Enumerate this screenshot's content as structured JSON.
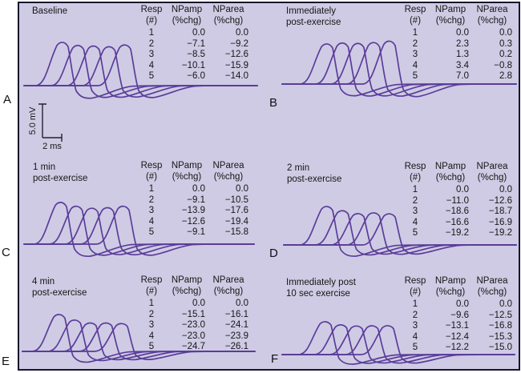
{
  "figure": {
    "background_color": "#cfcbe4",
    "trace_color": "#5a3d9a",
    "border_color": "#16162e"
  },
  "scale_bar": {
    "amplitude_label": "5.0 mV",
    "time_label": "2 ms"
  },
  "panel_letters": [
    "A",
    "B",
    "C",
    "D",
    "E",
    "F"
  ],
  "table_headers": [
    "Resp\n(#)",
    "NPamp\n(%chg)",
    "NParea\n(%chg)"
  ],
  "panels": [
    {
      "letter": "A",
      "title": "Baseline",
      "rows": [
        [
          "1",
          "0.0",
          "0.0"
        ],
        [
          "2",
          "−7.1",
          "−9.2"
        ],
        [
          "3",
          "−8.5",
          "−12.6"
        ],
        [
          "4",
          "−10.1",
          "−15.9"
        ],
        [
          "5",
          "−6.0",
          "−14.0"
        ]
      ]
    },
    {
      "letter": "B",
      "title": "Immediately\npost-exercise",
      "rows": [
        [
          "1",
          "0.0",
          "0.0"
        ],
        [
          "2",
          "2.3",
          "0.3"
        ],
        [
          "3",
          "1.3",
          "0.2"
        ],
        [
          "4",
          "3.4",
          "−0.8"
        ],
        [
          "5",
          "7.0",
          "2.8"
        ]
      ]
    },
    {
      "letter": "C",
      "title": "1 min\npost-exercise",
      "rows": [
        [
          "1",
          "0.0",
          "0.0"
        ],
        [
          "2",
          "−9.1",
          "−10.5"
        ],
        [
          "3",
          "−13.9",
          "−17.6"
        ],
        [
          "4",
          "−12.6",
          "−19.4"
        ],
        [
          "5",
          "−9.1",
          "−15.8"
        ]
      ]
    },
    {
      "letter": "D",
      "title": "2 min\npost-exercise",
      "rows": [
        [
          "1",
          "0.0",
          "0.0"
        ],
        [
          "2",
          "−11.0",
          "−12.6"
        ],
        [
          "3",
          "−18.6",
          "−18.7"
        ],
        [
          "4",
          "−16.6",
          "−16.9"
        ],
        [
          "5",
          "−19.2",
          "−19.2"
        ]
      ]
    },
    {
      "letter": "E",
      "title": "4 min\npost-exercise",
      "rows": [
        [
          "1",
          "0.0",
          "0.0"
        ],
        [
          "2",
          "−15.1",
          "−16.1"
        ],
        [
          "3",
          "−23.0",
          "−24.1"
        ],
        [
          "4",
          "−23.0",
          "−23.9"
        ],
        [
          "5",
          "−24.7",
          "−26.1"
        ]
      ]
    },
    {
      "letter": "F",
      "title": "Immediately post\n10 sec exercise",
      "rows": [
        [
          "1",
          "0.0",
          "0.0"
        ],
        [
          "2",
          "−9.6",
          "−12.5"
        ],
        [
          "3",
          "−13.1",
          "−16.8"
        ],
        [
          "4",
          "−12.4",
          "−15.3"
        ],
        [
          "5",
          "−12.2",
          "−15.0"
        ]
      ]
    }
  ],
  "chart_data": [
    {
      "panel": "A",
      "condition": "Baseline",
      "type": "line",
      "description": "Five overlaid CMAP waveform responses to repetitive stimulation",
      "columns": [
        "Resp (#)",
        "NPamp (%chg)",
        "NParea (%chg)"
      ],
      "rows": [
        [
          1,
          0.0,
          0.0
        ],
        [
          2,
          -7.1,
          -9.2
        ],
        [
          3,
          -8.5,
          -12.6
        ],
        [
          4,
          -10.1,
          -15.9
        ],
        [
          5,
          -6.0,
          -14.0
        ]
      ],
      "scale": {
        "vertical": "5.0 mV",
        "horizontal": "2 ms"
      }
    },
    {
      "panel": "B",
      "condition": "Immediately post-exercise",
      "type": "line",
      "columns": [
        "Resp (#)",
        "NPamp (%chg)",
        "NParea (%chg)"
      ],
      "rows": [
        [
          1,
          0.0,
          0.0
        ],
        [
          2,
          2.3,
          0.3
        ],
        [
          3,
          1.3,
          0.2
        ],
        [
          4,
          3.4,
          -0.8
        ],
        [
          5,
          7.0,
          2.8
        ]
      ]
    },
    {
      "panel": "C",
      "condition": "1 min post-exercise",
      "type": "line",
      "columns": [
        "Resp (#)",
        "NPamp (%chg)",
        "NParea (%chg)"
      ],
      "rows": [
        [
          1,
          0.0,
          0.0
        ],
        [
          2,
          -9.1,
          -10.5
        ],
        [
          3,
          -13.9,
          -17.6
        ],
        [
          4,
          -12.6,
          -19.4
        ],
        [
          5,
          -9.1,
          -15.8
        ]
      ]
    },
    {
      "panel": "D",
      "condition": "2 min post-exercise",
      "type": "line",
      "columns": [
        "Resp (#)",
        "NPamp (%chg)",
        "NParea (%chg)"
      ],
      "rows": [
        [
          1,
          0.0,
          0.0
        ],
        [
          2,
          -11.0,
          -12.6
        ],
        [
          3,
          -18.6,
          -18.7
        ],
        [
          4,
          -16.6,
          -16.9
        ],
        [
          5,
          -19.2,
          -19.2
        ]
      ]
    },
    {
      "panel": "E",
      "condition": "4 min post-exercise",
      "type": "line",
      "columns": [
        "Resp (#)",
        "NPamp (%chg)",
        "NParea (%chg)"
      ],
      "rows": [
        [
          1,
          0.0,
          0.0
        ],
        [
          2,
          -15.1,
          -16.1
        ],
        [
          3,
          -23.0,
          -24.1
        ],
        [
          4,
          -23.0,
          -23.9
        ],
        [
          5,
          -24.7,
          -26.1
        ]
      ]
    },
    {
      "panel": "F",
      "condition": "Immediately post 10 sec exercise",
      "type": "line",
      "columns": [
        "Resp (#)",
        "NPamp (%chg)",
        "NParea (%chg)"
      ],
      "rows": [
        [
          1,
          0.0,
          0.0
        ],
        [
          2,
          -9.6,
          -12.5
        ],
        [
          3,
          -13.1,
          -16.8
        ],
        [
          4,
          -12.4,
          -15.3
        ],
        [
          5,
          -12.2,
          -15.0
        ]
      ]
    }
  ]
}
